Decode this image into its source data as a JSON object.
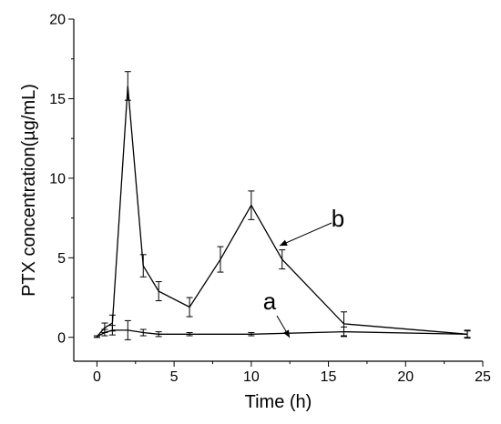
{
  "chart_data": {
    "type": "line",
    "xlabel": "Time (h)",
    "ylabel": "PTX concentration(µg/mL)",
    "xlim": [
      -1.5,
      25
    ],
    "ylim": [
      -1.5,
      20
    ],
    "xticks": [
      0,
      5,
      10,
      15,
      20,
      25
    ],
    "yticks": [
      0,
      5,
      10,
      15,
      20
    ],
    "xtick_labels": [
      "0",
      "5",
      "10",
      "15",
      "20",
      "25"
    ],
    "ytick_labels": [
      "0",
      "5",
      "10",
      "15",
      "20"
    ],
    "grid": false,
    "series": [
      {
        "name": "a",
        "x": [
          0,
          0.5,
          1,
          2,
          3,
          4,
          6,
          10,
          16,
          24
        ],
        "y": [
          0.05,
          0.3,
          0.45,
          0.45,
          0.3,
          0.2,
          0.2,
          0.2,
          0.35,
          0.2
        ],
        "err": [
          0.05,
          0.2,
          0.3,
          0.6,
          0.2,
          0.15,
          0.1,
          0.1,
          0.3,
          0.2
        ]
      },
      {
        "name": "b",
        "x": [
          0,
          0.5,
          1,
          2,
          3,
          4,
          6,
          8,
          10,
          12,
          16,
          24
        ],
        "y": [
          0.05,
          0.6,
          0.9,
          15.8,
          4.5,
          2.9,
          1.9,
          4.9,
          8.3,
          4.9,
          0.85,
          0.2
        ],
        "err": [
          0.05,
          0.3,
          0.5,
          0.9,
          0.7,
          0.6,
          0.6,
          0.8,
          0.9,
          0.6,
          0.75,
          0.25
        ]
      }
    ],
    "annotations": [
      {
        "text": "a",
        "series": "a"
      },
      {
        "text": "b",
        "series": "b"
      }
    ]
  }
}
